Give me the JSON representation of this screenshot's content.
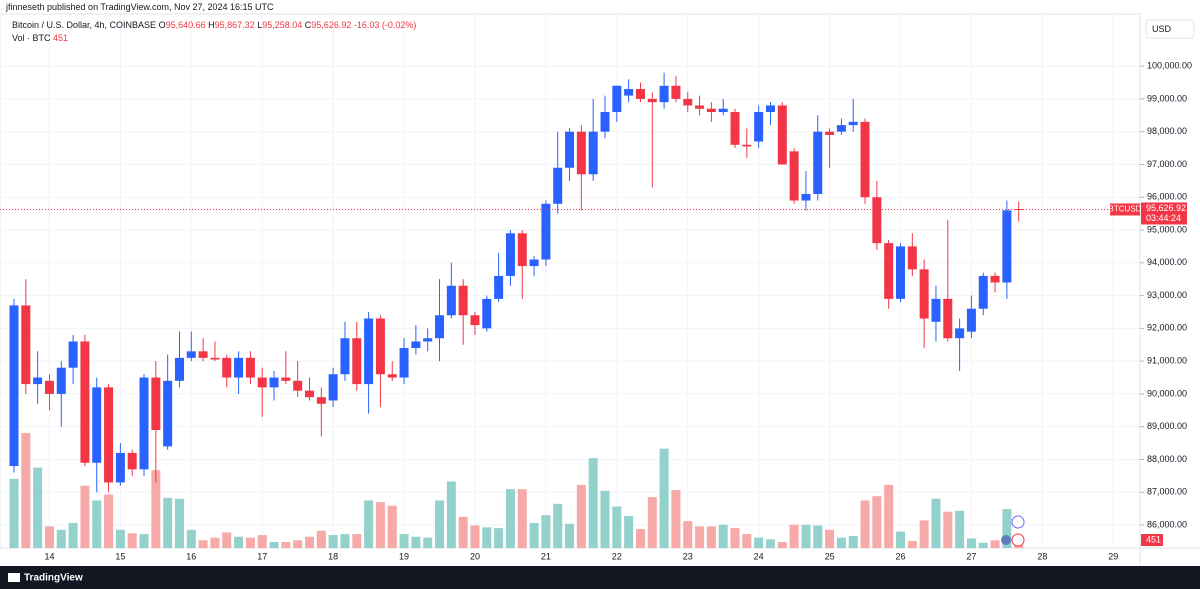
{
  "header": {
    "publisher": "jfinneseth published on TradingView.com, Nov 27, 2024 16:15 UTC"
  },
  "chart_data": {
    "type": "candlestick",
    "symbol": "Bitcoin / U.S. Dollar, 4h, COINBASE",
    "legend_values": [
      {
        "label": "O",
        "value": "95,640.66"
      },
      {
        "label": "H",
        "value": "95,867.32"
      },
      {
        "label": "L",
        "value": "95,258.04"
      },
      {
        "label": "C",
        "value": "95,626.92"
      }
    ],
    "change": "-16.03 (-0.02%)",
    "volume_label": "Vol · BTC",
    "volume_value_label": "451",
    "currency": "USD",
    "last_symbol": "BTCUSD",
    "last_price_label": "95,626.92",
    "countdown": "03:44:24",
    "up_color": "#2962ff",
    "down_color": "#f23645",
    "volume_up_color": "#93d2cc",
    "volume_down_color": "#f7a9a7",
    "categories": [
      null,
      null,
      null,
      "14",
      null,
      null,
      null,
      null,
      null,
      "15",
      null,
      null,
      null,
      null,
      null,
      "16",
      null,
      null,
      null,
      null,
      null,
      "17",
      null,
      null,
      null,
      null,
      null,
      "18",
      null,
      null,
      null,
      null,
      null,
      "19",
      null,
      null,
      null,
      null,
      null,
      "20",
      null,
      null,
      null,
      null,
      null,
      "21",
      null,
      null,
      null,
      null,
      null,
      "22",
      null,
      null,
      null,
      null,
      null,
      "23",
      null,
      null,
      null,
      null,
      null,
      "24",
      null,
      null,
      null,
      null,
      null,
      "25",
      null,
      null,
      null,
      null,
      null,
      "26",
      null,
      null,
      null,
      null,
      null,
      "27",
      null,
      null,
      null,
      null,
      null,
      "28",
      null,
      null,
      null,
      null,
      null,
      "29"
    ],
    "open": [
      87800,
      92700,
      90300,
      90400,
      90000,
      90800,
      91600,
      87900,
      90200,
      87300,
      88200,
      87700,
      90500,
      88400,
      90400,
      91100,
      91300,
      91100,
      91100,
      90500,
      91100,
      90500,
      90200,
      90500,
      90400,
      90100,
      89900,
      89800,
      90600,
      91700,
      90300,
      92300,
      90600,
      90500,
      91400,
      91600,
      91700,
      92400,
      93300,
      92400,
      92000,
      92900,
      93600,
      94900,
      93900,
      94100,
      95800,
      96900,
      98000,
      96700,
      98000,
      98600,
      99100,
      99300,
      99000,
      98900,
      99400,
      99000,
      98800,
      98700,
      98600,
      98600,
      97600,
      97700,
      98600,
      98800,
      97400,
      95900,
      96100,
      98000,
      98000,
      98200,
      98300,
      96000,
      94600,
      92900,
      94500,
      93800,
      92200,
      92900,
      91700,
      91900,
      92600,
      93600,
      93400,
      95640.66,
      null,
      null,
      null,
      null,
      null,
      null,
      null,
      null
    ],
    "high": [
      92900,
      93500,
      91300,
      90600,
      91000,
      91800,
      91800,
      90500,
      90300,
      88500,
      88300,
      90600,
      91000,
      91200,
      91900,
      91900,
      91700,
      91600,
      91200,
      91300,
      91300,
      90800,
      90700,
      91300,
      91000,
      90500,
      90200,
      90800,
      92200,
      92200,
      92500,
      92400,
      91000,
      91700,
      92100,
      92000,
      93500,
      94000,
      93500,
      92500,
      93000,
      94300,
      95000,
      95000,
      94200,
      95900,
      98000,
      98100,
      98200,
      99000,
      99100,
      99400,
      99600,
      99500,
      99200,
      99800,
      99700,
      99200,
      99100,
      98900,
      99000,
      98700,
      98100,
      98800,
      98900,
      98900,
      97500,
      96800,
      98500,
      98100,
      98400,
      99000,
      98400,
      96500,
      94700,
      94600,
      94900,
      94100,
      93300,
      95300,
      92300,
      93000,
      93700,
      93700,
      95900,
      95867.32,
      null,
      null,
      null,
      null,
      null,
      null,
      null,
      null
    ],
    "low": [
      87600,
      90000,
      89700,
      89500,
      89000,
      90300,
      87800,
      87000,
      87000,
      87200,
      87500,
      87500,
      87300,
      88300,
      90200,
      91000,
      91000,
      91000,
      90200,
      90000,
      90300,
      89300,
      89800,
      90300,
      89900,
      89800,
      88700,
      89600,
      90400,
      90100,
      89400,
      89600,
      90400,
      90300,
      91200,
      91300,
      91000,
      92300,
      91500,
      91800,
      91900,
      92800,
      93300,
      92900,
      93600,
      93900,
      95500,
      96500,
      95600,
      96500,
      97800,
      98300,
      98900,
      98900,
      96300,
      98700,
      98900,
      98600,
      98500,
      98300,
      98500,
      97500,
      97200,
      97500,
      98200,
      97000,
      95800,
      95600,
      95900,
      96900,
      97900,
      98000,
      95800,
      94400,
      92600,
      92800,
      93600,
      91400,
      91600,
      91600,
      90700,
      91700,
      92400,
      93100,
      92900,
      95258.04,
      null,
      null,
      null,
      null,
      null,
      null,
      null,
      null
    ],
    "close": [
      92700,
      90300,
      90500,
      90000,
      90800,
      91600,
      87900,
      90200,
      87300,
      88200,
      87700,
      90500,
      88900,
      90400,
      91100,
      91300,
      91100,
      91050,
      90500,
      91100,
      90500,
      90200,
      90500,
      90400,
      90100,
      89900,
      89700,
      90600,
      91700,
      90300,
      92300,
      90600,
      90500,
      91400,
      91600,
      91700,
      92400,
      93300,
      92400,
      92100,
      92900,
      93600,
      94900,
      93900,
      94100,
      95800,
      96900,
      98000,
      96700,
      98000,
      98600,
      99400,
      99300,
      99000,
      98900,
      99400,
      99000,
      98800,
      98700,
      98600,
      98700,
      97600,
      97550,
      98600,
      98800,
      97000,
      95900,
      96100,
      98000,
      97900,
      98200,
      98300,
      96000,
      94600,
      92900,
      94500,
      93800,
      92300,
      92900,
      91700,
      92000,
      92600,
      93600,
      93400,
      95600,
      95626.92,
      null,
      null,
      null,
      null,
      null,
      null,
      null,
      null
    ],
    "volume": [
      4480,
      7450,
      5210,
      1400,
      1180,
      1620,
      4030,
      3080,
      3470,
      1180,
      950,
      900,
      5040,
      3250,
      3190,
      1180,
      500,
      670,
      1010,
      730,
      670,
      840,
      390,
      390,
      500,
      730,
      1120,
      840,
      900,
      900,
      3080,
      2970,
      2740,
      900,
      730,
      670,
      3080,
      4310,
      2020,
      1460,
      1340,
      1290,
      3810,
      3810,
      1620,
      2130,
      2860,
      1570,
      4090,
      5820,
      3700,
      2690,
      2070,
      1230,
      3300,
      6440,
      3750,
      1740,
      1400,
      1400,
      1510,
      1290,
      900,
      670,
      560,
      390,
      1510,
      1510,
      1460,
      1180,
      670,
      780,
      3080,
      3360,
      4090,
      1060,
      450,
      1790,
      3190,
      2350,
      2410,
      620,
      340,
      500,
      2520,
      451,
      null,
      null,
      null,
      null,
      null,
      null,
      null,
      null
    ],
    "ylim": [
      85300,
      101590
    ],
    "yticks": [
      {
        "value": 86000,
        "label": "86,000.00"
      },
      {
        "value": 87000,
        "label": "87,000.00"
      },
      {
        "value": 88000,
        "label": "88,000.00"
      },
      {
        "value": 89000,
        "label": "89,000.00"
      },
      {
        "value": 90000,
        "label": "90,000.00"
      },
      {
        "value": 91000,
        "label": "91,000.00"
      },
      {
        "value": 92000,
        "label": "92,000.00"
      },
      {
        "value": 93000,
        "label": "93,000.00"
      },
      {
        "value": 94000,
        "label": "94,000.00"
      },
      {
        "value": 95000,
        "label": "95,000.00"
      },
      {
        "value": 96000,
        "label": "96,000.00"
      },
      {
        "value": 97000,
        "label": "97,000.00"
      },
      {
        "value": 98000,
        "label": "98,000.00"
      },
      {
        "value": 99000,
        "label": "99,000.00"
      },
      {
        "value": 100000,
        "label": "100,000.00"
      }
    ],
    "grid": true
  },
  "footer": {
    "brand": "TradingView"
  }
}
